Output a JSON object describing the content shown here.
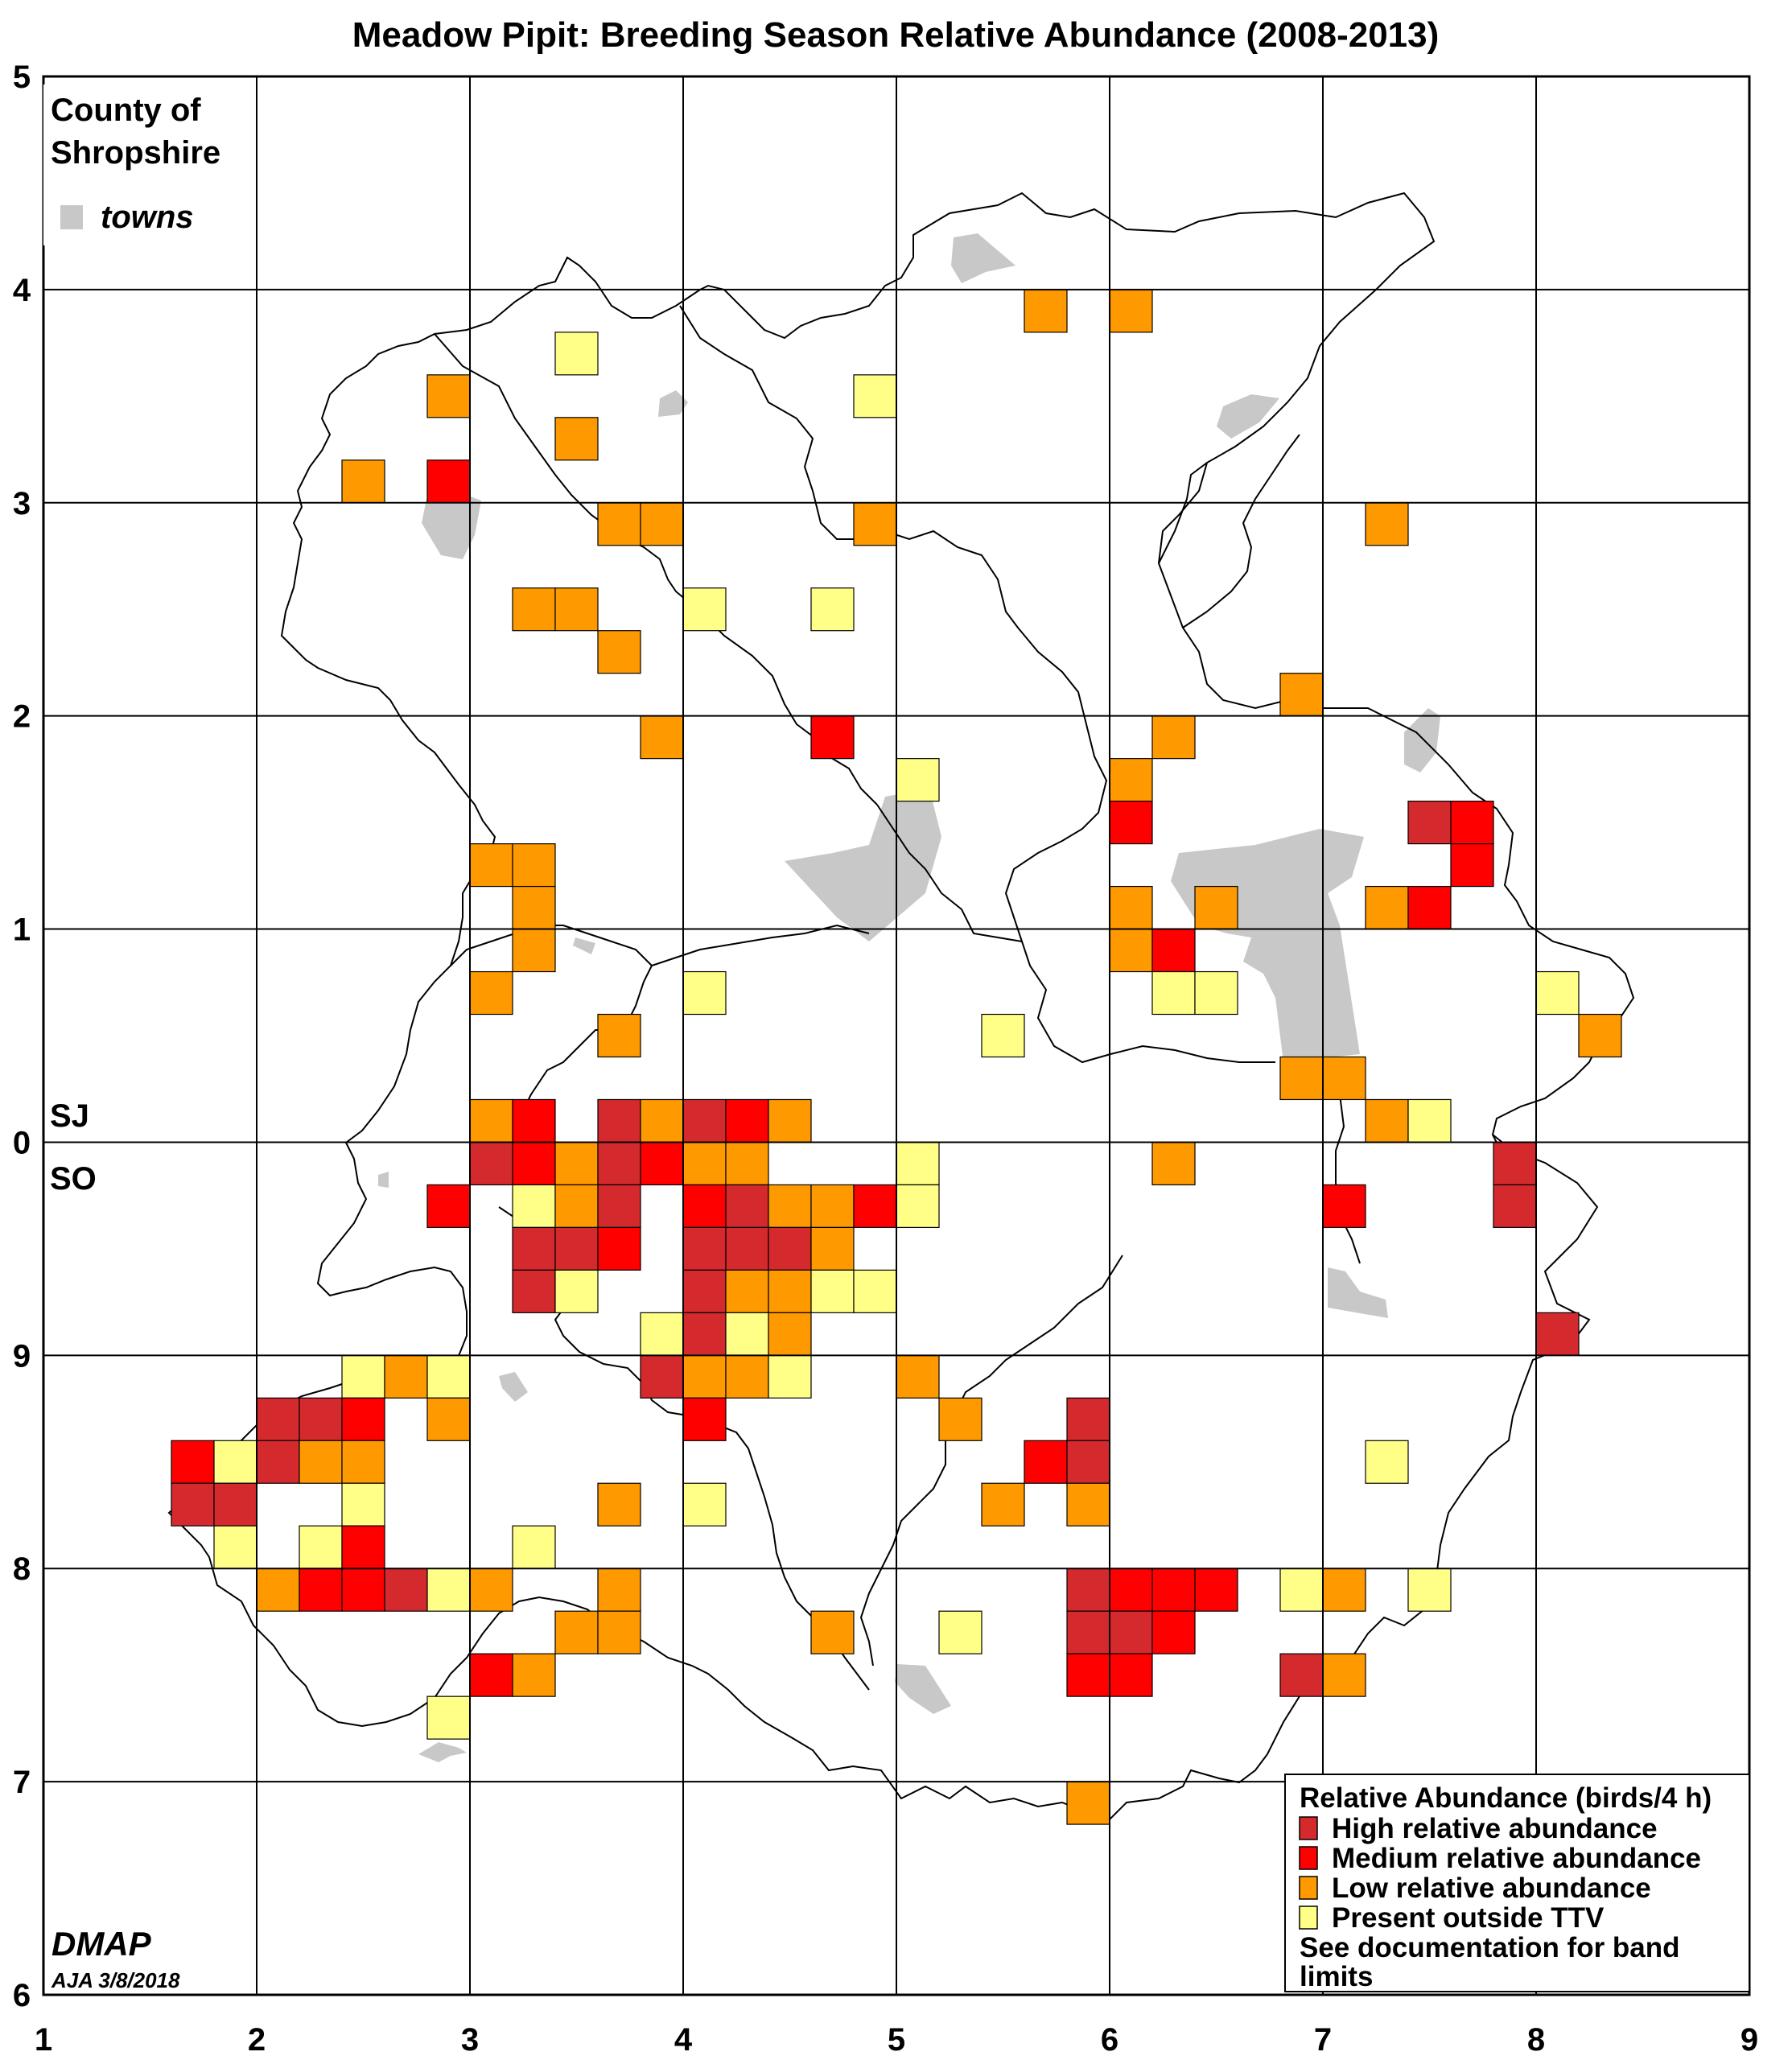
{
  "title": "Meadow Pipit: Breeding Season Relative Abundance (2008-2013)",
  "county_label": [
    "County of",
    "Shropshire"
  ],
  "towns_label": "towns",
  "grid_ref_upper": "SJ",
  "grid_ref_lower": "SO",
  "x_ticks": [
    "1",
    "2",
    "3",
    "4",
    "5",
    "6",
    "7",
    "8",
    "9"
  ],
  "y_ticks": [
    "6",
    "7",
    "8",
    "9",
    "0",
    "1",
    "2",
    "3",
    "4",
    "5"
  ],
  "credit": "DMAP",
  "credit_date": "AJA 3/8/2018",
  "legend": {
    "title": "Relative Abundance (birds/4 h)",
    "items": [
      {
        "label": "High relative abundance",
        "color": "#d42a2e"
      },
      {
        "label": "Medium relative abundance",
        "color": "#ff0000"
      },
      {
        "label": "Low relative abundance",
        "color": "#ff9900"
      },
      {
        "label": "Present outside TTV",
        "color": "#ffff88"
      }
    ],
    "note": [
      "See documentation for band",
      "limits"
    ]
  },
  "colors": {
    "high": "#d42a2e",
    "medium": "#ff0000",
    "low": "#ff9900",
    "present": "#ffff88",
    "town": "#c8c8c8",
    "grid": "#000000"
  },
  "chart_data": {
    "type": "grid map",
    "x_range": [
      1,
      9
    ],
    "y_range": [
      6,
      15
    ],
    "cell_size_units": 0.2,
    "tetrads": [
      {
        "x": 5.6,
        "y": 13.8,
        "level": "low"
      },
      {
        "x": 6.0,
        "y": 13.8,
        "level": "low"
      },
      {
        "x": 3.4,
        "y": 13.6,
        "level": "present"
      },
      {
        "x": 2.8,
        "y": 13.4,
        "level": "low"
      },
      {
        "x": 4.8,
        "y": 13.4,
        "level": "present"
      },
      {
        "x": 3.4,
        "y": 13.2,
        "level": "low"
      },
      {
        "x": 2.4,
        "y": 13.0,
        "level": "low"
      },
      {
        "x": 2.8,
        "y": 13.0,
        "level": "medium"
      },
      {
        "x": 3.6,
        "y": 12.8,
        "level": "low"
      },
      {
        "x": 3.8,
        "y": 12.8,
        "level": "low"
      },
      {
        "x": 4.8,
        "y": 12.8,
        "level": "low"
      },
      {
        "x": 7.2,
        "y": 12.8,
        "level": "low"
      },
      {
        "x": 3.2,
        "y": 12.4,
        "level": "low"
      },
      {
        "x": 3.4,
        "y": 12.4,
        "level": "low"
      },
      {
        "x": 4.0,
        "y": 12.4,
        "level": "present"
      },
      {
        "x": 4.6,
        "y": 12.4,
        "level": "present"
      },
      {
        "x": 3.6,
        "y": 12.2,
        "level": "low"
      },
      {
        "x": 6.8,
        "y": 12.0,
        "level": "low"
      },
      {
        "x": 3.8,
        "y": 11.8,
        "level": "low"
      },
      {
        "x": 4.6,
        "y": 11.8,
        "level": "medium"
      },
      {
        "x": 6.2,
        "y": 11.8,
        "level": "low"
      },
      {
        "x": 5.0,
        "y": 11.6,
        "level": "present"
      },
      {
        "x": 6.0,
        "y": 11.6,
        "level": "low"
      },
      {
        "x": 6.0,
        "y": 11.4,
        "level": "medium"
      },
      {
        "x": 7.4,
        "y": 11.4,
        "level": "high"
      },
      {
        "x": 7.6,
        "y": 11.4,
        "level": "medium"
      },
      {
        "x": 3.0,
        "y": 11.2,
        "level": "low"
      },
      {
        "x": 3.2,
        "y": 11.2,
        "level": "low"
      },
      {
        "x": 7.6,
        "y": 11.2,
        "level": "medium"
      },
      {
        "x": 3.2,
        "y": 11.0,
        "level": "low"
      },
      {
        "x": 6.0,
        "y": 11.0,
        "level": "low"
      },
      {
        "x": 6.4,
        "y": 11.0,
        "level": "low"
      },
      {
        "x": 7.2,
        "y": 11.0,
        "level": "low"
      },
      {
        "x": 7.4,
        "y": 11.0,
        "level": "medium"
      },
      {
        "x": 3.2,
        "y": 10.8,
        "level": "low"
      },
      {
        "x": 6.0,
        "y": 10.8,
        "level": "low"
      },
      {
        "x": 6.2,
        "y": 10.8,
        "level": "medium"
      },
      {
        "x": 3.0,
        "y": 10.6,
        "level": "low"
      },
      {
        "x": 4.0,
        "y": 10.6,
        "level": "present"
      },
      {
        "x": 6.2,
        "y": 10.6,
        "level": "present"
      },
      {
        "x": 6.4,
        "y": 10.6,
        "level": "present"
      },
      {
        "x": 8.0,
        "y": 10.6,
        "level": "present"
      },
      {
        "x": 3.6,
        "y": 10.4,
        "level": "low"
      },
      {
        "x": 5.4,
        "y": 10.4,
        "level": "present"
      },
      {
        "x": 8.2,
        "y": 10.4,
        "level": "low"
      },
      {
        "x": 6.8,
        "y": 10.2,
        "level": "low"
      },
      {
        "x": 7.0,
        "y": 10.2,
        "level": "low"
      },
      {
        "x": 3.0,
        "y": 10.0,
        "level": "low"
      },
      {
        "x": 3.2,
        "y": 10.0,
        "level": "medium"
      },
      {
        "x": 3.6,
        "y": 10.0,
        "level": "high"
      },
      {
        "x": 3.8,
        "y": 10.0,
        "level": "low"
      },
      {
        "x": 4.0,
        "y": 10.0,
        "level": "high"
      },
      {
        "x": 4.2,
        "y": 10.0,
        "level": "medium"
      },
      {
        "x": 4.4,
        "y": 10.0,
        "level": "low"
      },
      {
        "x": 7.2,
        "y": 10.0,
        "level": "low"
      },
      {
        "x": 7.4,
        "y": 10.0,
        "level": "present"
      },
      {
        "x": 3.0,
        "y": 9.8,
        "level": "high"
      },
      {
        "x": 3.2,
        "y": 9.8,
        "level": "medium"
      },
      {
        "x": 3.4,
        "y": 9.8,
        "level": "low"
      },
      {
        "x": 3.6,
        "y": 9.8,
        "level": "high"
      },
      {
        "x": 3.8,
        "y": 9.8,
        "level": "medium"
      },
      {
        "x": 4.0,
        "y": 9.8,
        "level": "low"
      },
      {
        "x": 4.2,
        "y": 9.8,
        "level": "low"
      },
      {
        "x": 5.0,
        "y": 9.8,
        "level": "present"
      },
      {
        "x": 6.2,
        "y": 9.8,
        "level": "low"
      },
      {
        "x": 7.8,
        "y": 9.8,
        "level": "high"
      },
      {
        "x": 2.8,
        "y": 9.6,
        "level": "medium"
      },
      {
        "x": 3.2,
        "y": 9.6,
        "level": "present"
      },
      {
        "x": 3.4,
        "y": 9.6,
        "level": "low"
      },
      {
        "x": 3.6,
        "y": 9.6,
        "level": "high"
      },
      {
        "x": 4.0,
        "y": 9.6,
        "level": "medium"
      },
      {
        "x": 4.2,
        "y": 9.6,
        "level": "high"
      },
      {
        "x": 4.4,
        "y": 9.6,
        "level": "low"
      },
      {
        "x": 4.6,
        "y": 9.6,
        "level": "low"
      },
      {
        "x": 4.8,
        "y": 9.6,
        "level": "medium"
      },
      {
        "x": 5.0,
        "y": 9.6,
        "level": "present"
      },
      {
        "x": 7.0,
        "y": 9.6,
        "level": "medium"
      },
      {
        "x": 7.8,
        "y": 9.6,
        "level": "high"
      },
      {
        "x": 3.2,
        "y": 9.4,
        "level": "high"
      },
      {
        "x": 3.4,
        "y": 9.4,
        "level": "high"
      },
      {
        "x": 3.6,
        "y": 9.4,
        "level": "medium"
      },
      {
        "x": 4.0,
        "y": 9.4,
        "level": "high"
      },
      {
        "x": 4.2,
        "y": 9.4,
        "level": "high"
      },
      {
        "x": 4.4,
        "y": 9.4,
        "level": "high"
      },
      {
        "x": 4.6,
        "y": 9.4,
        "level": "low"
      },
      {
        "x": 3.2,
        "y": 9.2,
        "level": "high"
      },
      {
        "x": 3.4,
        "y": 9.2,
        "level": "present"
      },
      {
        "x": 4.0,
        "y": 9.2,
        "level": "high"
      },
      {
        "x": 4.2,
        "y": 9.2,
        "level": "low"
      },
      {
        "x": 4.4,
        "y": 9.2,
        "level": "low"
      },
      {
        "x": 4.6,
        "y": 9.2,
        "level": "present"
      },
      {
        "x": 4.8,
        "y": 9.2,
        "level": "present"
      },
      {
        "x": 3.8,
        "y": 9.0,
        "level": "present"
      },
      {
        "x": 4.0,
        "y": 9.0,
        "level": "high"
      },
      {
        "x": 4.2,
        "y": 9.0,
        "level": "present"
      },
      {
        "x": 4.4,
        "y": 9.0,
        "level": "low"
      },
      {
        "x": 8.0,
        "y": 9.0,
        "level": "high"
      },
      {
        "x": 2.4,
        "y": 8.8,
        "level": "present"
      },
      {
        "x": 2.6,
        "y": 8.8,
        "level": "low"
      },
      {
        "x": 2.8,
        "y": 8.8,
        "level": "present"
      },
      {
        "x": 3.8,
        "y": 8.8,
        "level": "high"
      },
      {
        "x": 4.0,
        "y": 8.8,
        "level": "low"
      },
      {
        "x": 4.2,
        "y": 8.8,
        "level": "low"
      },
      {
        "x": 4.4,
        "y": 8.8,
        "level": "present"
      },
      {
        "x": 5.0,
        "y": 8.8,
        "level": "low"
      },
      {
        "x": 2.0,
        "y": 8.6,
        "level": "high"
      },
      {
        "x": 2.2,
        "y": 8.6,
        "level": "high"
      },
      {
        "x": 2.4,
        "y": 8.6,
        "level": "medium"
      },
      {
        "x": 2.8,
        "y": 8.6,
        "level": "low"
      },
      {
        "x": 4.0,
        "y": 8.6,
        "level": "medium"
      },
      {
        "x": 5.2,
        "y": 8.6,
        "level": "low"
      },
      {
        "x": 5.8,
        "y": 8.6,
        "level": "high"
      },
      {
        "x": 1.6,
        "y": 8.4,
        "level": "medium"
      },
      {
        "x": 1.8,
        "y": 8.4,
        "level": "present"
      },
      {
        "x": 2.0,
        "y": 8.4,
        "level": "high"
      },
      {
        "x": 2.2,
        "y": 8.4,
        "level": "low"
      },
      {
        "x": 2.4,
        "y": 8.4,
        "level": "low"
      },
      {
        "x": 5.6,
        "y": 8.4,
        "level": "medium"
      },
      {
        "x": 5.8,
        "y": 8.4,
        "level": "high"
      },
      {
        "x": 7.2,
        "y": 8.4,
        "level": "present"
      },
      {
        "x": 1.6,
        "y": 8.2,
        "level": "high"
      },
      {
        "x": 1.8,
        "y": 8.2,
        "level": "high"
      },
      {
        "x": 2.4,
        "y": 8.2,
        "level": "present"
      },
      {
        "x": 3.6,
        "y": 8.2,
        "level": "low"
      },
      {
        "x": 4.0,
        "y": 8.2,
        "level": "present"
      },
      {
        "x": 5.4,
        "y": 8.2,
        "level": "low"
      },
      {
        "x": 5.8,
        "y": 8.2,
        "level": "low"
      },
      {
        "x": 1.8,
        "y": 8.0,
        "level": "present"
      },
      {
        "x": 2.2,
        "y": 8.0,
        "level": "present"
      },
      {
        "x": 2.4,
        "y": 8.0,
        "level": "medium"
      },
      {
        "x": 3.2,
        "y": 8.0,
        "level": "present"
      },
      {
        "x": 2.0,
        "y": 7.8,
        "level": "low"
      },
      {
        "x": 2.2,
        "y": 7.8,
        "level": "medium"
      },
      {
        "x": 2.4,
        "y": 7.8,
        "level": "medium"
      },
      {
        "x": 2.6,
        "y": 7.8,
        "level": "high"
      },
      {
        "x": 2.8,
        "y": 7.8,
        "level": "present"
      },
      {
        "x": 3.0,
        "y": 7.8,
        "level": "low"
      },
      {
        "x": 3.6,
        "y": 7.8,
        "level": "low"
      },
      {
        "x": 5.8,
        "y": 7.8,
        "level": "high"
      },
      {
        "x": 6.0,
        "y": 7.8,
        "level": "medium"
      },
      {
        "x": 6.2,
        "y": 7.8,
        "level": "medium"
      },
      {
        "x": 6.4,
        "y": 7.8,
        "level": "medium"
      },
      {
        "x": 6.8,
        "y": 7.8,
        "level": "present"
      },
      {
        "x": 7.0,
        "y": 7.8,
        "level": "low"
      },
      {
        "x": 7.4,
        "y": 7.8,
        "level": "present"
      },
      {
        "x": 3.4,
        "y": 7.6,
        "level": "low"
      },
      {
        "x": 3.6,
        "y": 7.6,
        "level": "low"
      },
      {
        "x": 4.6,
        "y": 7.6,
        "level": "low"
      },
      {
        "x": 5.2,
        "y": 7.6,
        "level": "present"
      },
      {
        "x": 5.8,
        "y": 7.6,
        "level": "high"
      },
      {
        "x": 6.0,
        "y": 7.6,
        "level": "high"
      },
      {
        "x": 6.2,
        "y": 7.6,
        "level": "medium"
      },
      {
        "x": 3.0,
        "y": 7.4,
        "level": "medium"
      },
      {
        "x": 3.2,
        "y": 7.4,
        "level": "low"
      },
      {
        "x": 5.8,
        "y": 7.4,
        "level": "medium"
      },
      {
        "x": 6.0,
        "y": 7.4,
        "level": "medium"
      },
      {
        "x": 6.8,
        "y": 7.4,
        "level": "high"
      },
      {
        "x": 7.0,
        "y": 7.4,
        "level": "low"
      },
      {
        "x": 2.8,
        "y": 7.2,
        "level": "present"
      },
      {
        "x": 5.8,
        "y": 6.8,
        "level": "low"
      }
    ]
  }
}
